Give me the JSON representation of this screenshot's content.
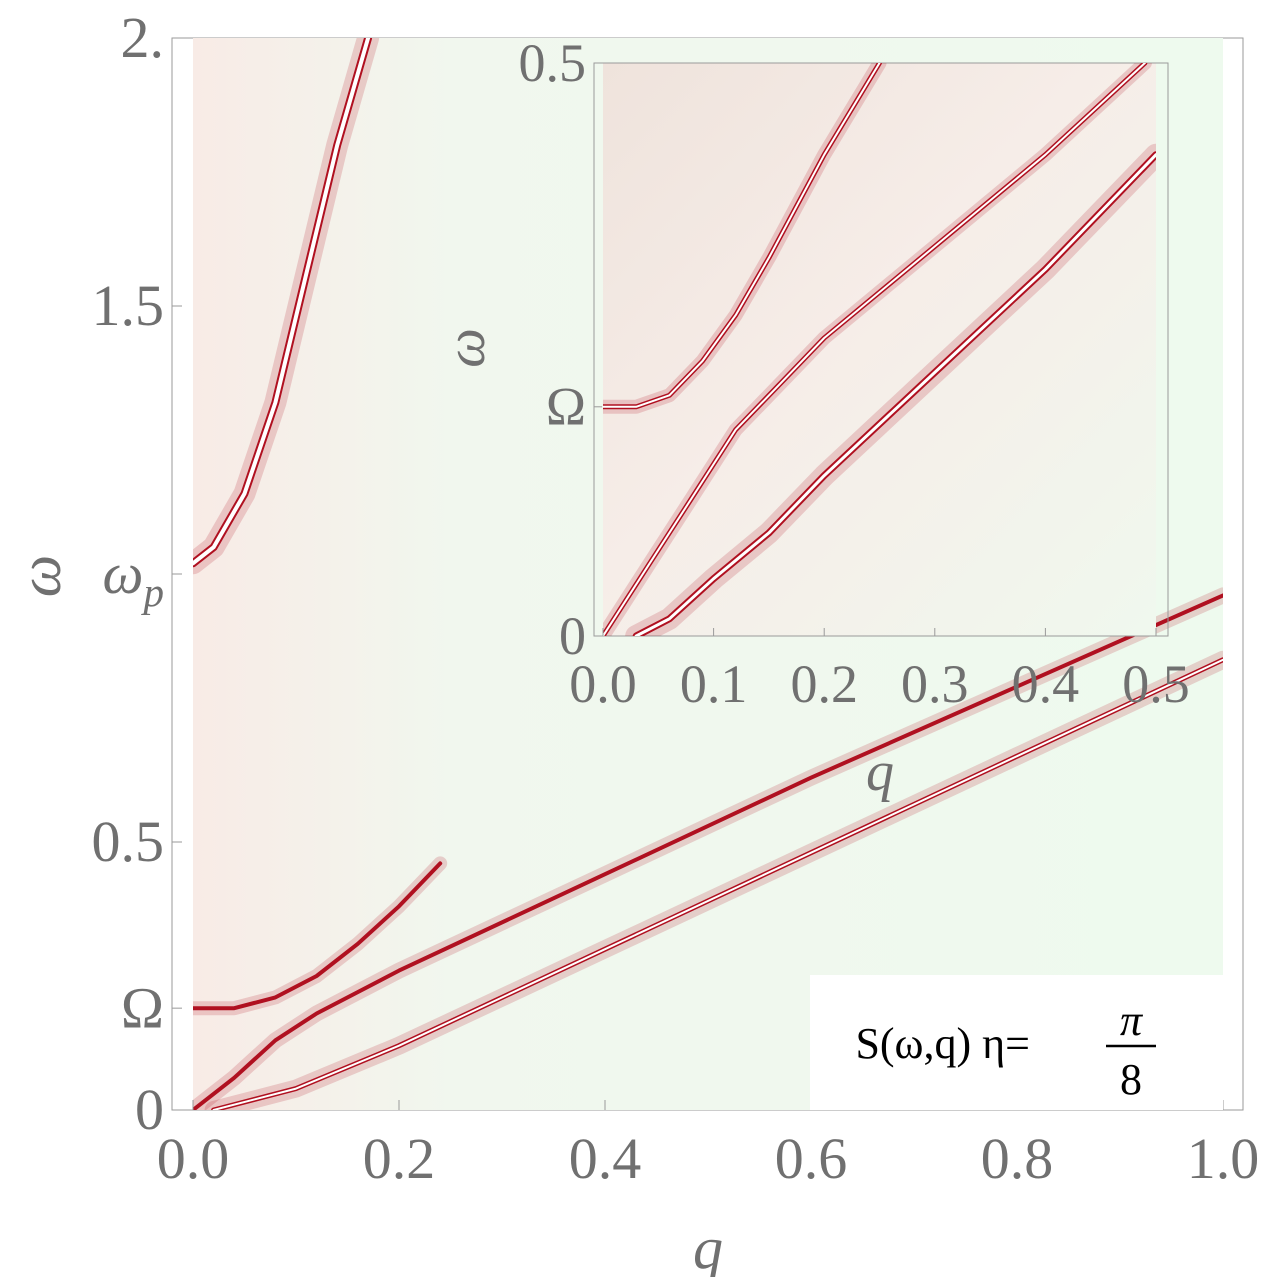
{
  "chart_data": [
    {
      "type": "heatmap",
      "title": "S(ω,q)",
      "xlabel": "q",
      "ylabel": "ω",
      "xlim": [
        0.0,
        1.0
      ],
      "ylim": [
        0.0,
        2.0
      ],
      "x_ticks": [
        {
          "value": 0.0,
          "label": "0.0"
        },
        {
          "value": 0.2,
          "label": "0.2"
        },
        {
          "value": 0.4,
          "label": "0.4"
        },
        {
          "value": 0.6,
          "label": "0.6"
        },
        {
          "value": 0.8,
          "label": "0.8"
        },
        {
          "value": 1.0,
          "label": "1.0"
        }
      ],
      "y_ticks": [
        {
          "value": 0.0,
          "label": "0"
        },
        {
          "value": 0.19,
          "label": "Ω"
        },
        {
          "value": 0.5,
          "label": "0.5"
        },
        {
          "value": 1.0,
          "label": "ω_p"
        },
        {
          "value": 1.5,
          "label": "1.5"
        },
        {
          "value": 2.0,
          "label": "2."
        }
      ],
      "legend": {
        "position": "bottom-right",
        "prefix": "S(ω,q) η=",
        "numerator": "π",
        "denominator": "8"
      },
      "colors": {
        "peak": "#b01020",
        "peak_core": "#ffffff",
        "background": "#eefaee",
        "tick": "#707070"
      },
      "series": [
        {
          "x": [
            0.0,
            0.02,
            0.05,
            0.08,
            0.11,
            0.14,
            0.17
          ],
          "y": [
            1.02,
            1.05,
            1.15,
            1.32,
            1.56,
            1.8,
            2.0
          ]
        },
        {
          "x": [
            0.0,
            0.04,
            0.08,
            0.12,
            0.16,
            0.2,
            0.24
          ],
          "y": [
            0.19,
            0.19,
            0.21,
            0.25,
            0.31,
            0.38,
            0.46
          ]
        },
        {
          "x": [
            0.0,
            0.04,
            0.08,
            0.12,
            0.2,
            0.4,
            0.6,
            0.8,
            1.0
          ],
          "y": [
            0.0,
            0.06,
            0.13,
            0.18,
            0.26,
            0.44,
            0.62,
            0.79,
            0.96
          ]
        },
        {
          "x": [
            0.02,
            0.06,
            0.1,
            0.2,
            0.4,
            0.6,
            0.8,
            1.0
          ],
          "y": [
            0.0,
            0.02,
            0.04,
            0.12,
            0.3,
            0.48,
            0.66,
            0.84
          ]
        }
      ]
    },
    {
      "type": "heatmap",
      "title": "",
      "xlabel": "q",
      "ylabel": "ω",
      "xlim": [
        0.0,
        0.5
      ],
      "ylim": [
        0.0,
        0.5
      ],
      "x_ticks": [
        {
          "value": 0.0,
          "label": "0.0"
        },
        {
          "value": 0.1,
          "label": "0.1"
        },
        {
          "value": 0.2,
          "label": "0.2"
        },
        {
          "value": 0.3,
          "label": "0.3"
        },
        {
          "value": 0.4,
          "label": "0.4"
        },
        {
          "value": 0.5,
          "label": "0.5"
        }
      ],
      "y_ticks": [
        {
          "value": 0.0,
          "label": "0"
        },
        {
          "value": 0.2,
          "label": "Ω"
        },
        {
          "value": 0.5,
          "label": "0.5"
        }
      ],
      "series": [
        {
          "x": [
            0.0,
            0.03,
            0.06,
            0.09,
            0.12,
            0.15,
            0.2,
            0.25
          ],
          "y": [
            0.2,
            0.2,
            0.21,
            0.24,
            0.28,
            0.33,
            0.42,
            0.5
          ]
        },
        {
          "x": [
            0.0,
            0.04,
            0.08,
            0.12,
            0.16,
            0.2,
            0.3,
            0.4,
            0.49
          ],
          "y": [
            0.0,
            0.06,
            0.12,
            0.18,
            0.22,
            0.26,
            0.34,
            0.42,
            0.5
          ]
        },
        {
          "x": [
            0.03,
            0.06,
            0.1,
            0.15,
            0.2,
            0.3,
            0.4,
            0.5
          ],
          "y": [
            0.0,
            0.015,
            0.05,
            0.09,
            0.14,
            0.23,
            0.32,
            0.42
          ]
        }
      ]
    }
  ]
}
